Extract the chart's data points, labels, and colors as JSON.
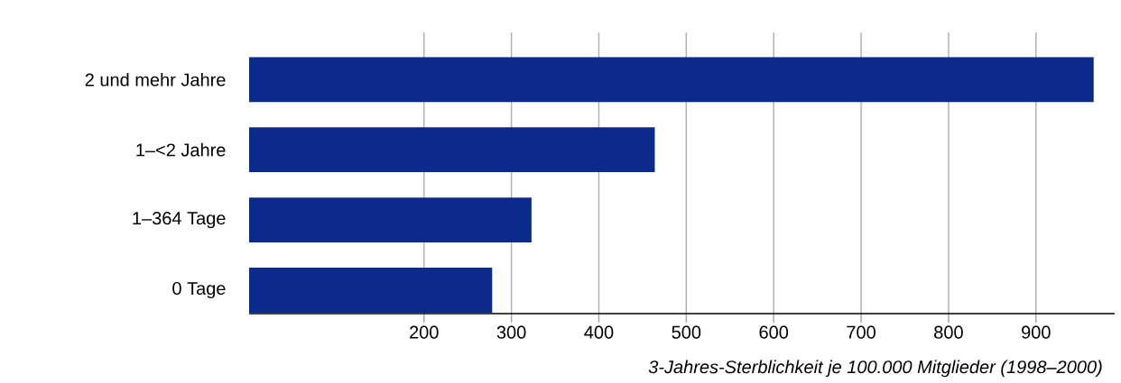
{
  "chart_data": {
    "type": "bar",
    "orientation": "horizontal",
    "xlabel": "3-Jahres-Sterblichkeit je 100.000 Mitglieder (1998–2000)",
    "categories": [
      "2 und mehr Jahre",
      "1–<2 Jahre",
      "1–364 Tage",
      "0 Tage"
    ],
    "values": [
      966,
      464,
      323,
      278
    ],
    "color": "#0c2a8c",
    "xlim": [
      0,
      990
    ],
    "xticks": [
      200,
      300,
      400,
      500,
      600,
      700,
      800,
      900
    ],
    "grid": "x"
  }
}
